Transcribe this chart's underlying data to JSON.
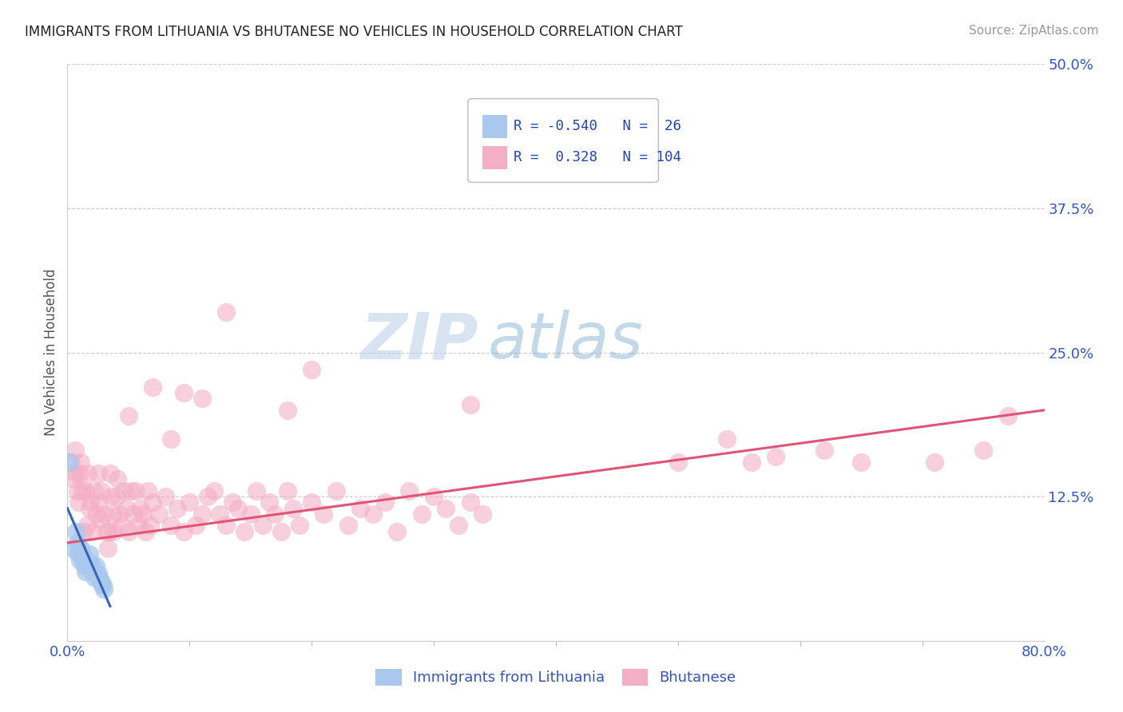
{
  "title": "IMMIGRANTS FROM LITHUANIA VS BHUTANESE NO VEHICLES IN HOUSEHOLD CORRELATION CHART",
  "source": "Source: ZipAtlas.com",
  "xlabel_blue": "Immigrants from Lithuania",
  "xlabel_pink": "Bhutanese",
  "ylabel": "No Vehicles in Household",
  "xlim": [
    0.0,
    0.8
  ],
  "ylim": [
    0.0,
    0.5
  ],
  "xtick_labels": [
    "0.0%",
    "80.0%"
  ],
  "ytick_labels": [
    "",
    "12.5%",
    "25.0%",
    "37.5%",
    "50.0%"
  ],
  "R_blue": -0.54,
  "N_blue": 26,
  "R_pink": 0.328,
  "N_pink": 104,
  "color_blue": "#aac8ee",
  "color_pink": "#f4afc5",
  "line_color_blue": "#3366bb",
  "line_color_pink": "#e05575",
  "watermark_zip": "ZIP",
  "watermark_atlas": "atlas",
  "blue_x": [
    0.002,
    0.005,
    0.007,
    0.008,
    0.009,
    0.01,
    0.011,
    0.012,
    0.013,
    0.014,
    0.015,
    0.016,
    0.017,
    0.018,
    0.019,
    0.02,
    0.021,
    0.022,
    0.023,
    0.024,
    0.025,
    0.026,
    0.027,
    0.028,
    0.029,
    0.03
  ],
  "blue_y": [
    0.155,
    0.08,
    0.095,
    0.085,
    0.075,
    0.07,
    0.08,
    0.075,
    0.07,
    0.065,
    0.06,
    0.07,
    0.065,
    0.075,
    0.068,
    0.065,
    0.06,
    0.055,
    0.065,
    0.058,
    0.058,
    0.055,
    0.052,
    0.05,
    0.048,
    0.045
  ],
  "pink_x": [
    0.003,
    0.005,
    0.006,
    0.007,
    0.008,
    0.009,
    0.01,
    0.011,
    0.012,
    0.013,
    0.015,
    0.016,
    0.017,
    0.018,
    0.019,
    0.02,
    0.022,
    0.023,
    0.025,
    0.026,
    0.027,
    0.028,
    0.03,
    0.032,
    0.033,
    0.034,
    0.035,
    0.036,
    0.037,
    0.038,
    0.04,
    0.041,
    0.042,
    0.044,
    0.046,
    0.048,
    0.05,
    0.052,
    0.054,
    0.056,
    0.058,
    0.06,
    0.062,
    0.064,
    0.066,
    0.068,
    0.07,
    0.075,
    0.08,
    0.085,
    0.09,
    0.095,
    0.1,
    0.105,
    0.11,
    0.115,
    0.12,
    0.125,
    0.13,
    0.135,
    0.14,
    0.145,
    0.15,
    0.155,
    0.16,
    0.165,
    0.17,
    0.175,
    0.18,
    0.185,
    0.19,
    0.2,
    0.21,
    0.22,
    0.23,
    0.24,
    0.25,
    0.26,
    0.27,
    0.28,
    0.29,
    0.3,
    0.31,
    0.32,
    0.33,
    0.34,
    0.05,
    0.11,
    0.2,
    0.33,
    0.5,
    0.56,
    0.58,
    0.62,
    0.65,
    0.71,
    0.13,
    0.085,
    0.18,
    0.54,
    0.07,
    0.095,
    0.75,
    0.77
  ],
  "pink_y": [
    0.155,
    0.14,
    0.165,
    0.145,
    0.13,
    0.12,
    0.145,
    0.155,
    0.13,
    0.095,
    0.13,
    0.1,
    0.145,
    0.115,
    0.12,
    0.095,
    0.13,
    0.11,
    0.145,
    0.12,
    0.105,
    0.13,
    0.11,
    0.095,
    0.08,
    0.095,
    0.145,
    0.125,
    0.11,
    0.095,
    0.125,
    0.14,
    0.11,
    0.1,
    0.13,
    0.115,
    0.095,
    0.13,
    0.11,
    0.13,
    0.1,
    0.115,
    0.11,
    0.095,
    0.13,
    0.1,
    0.12,
    0.11,
    0.125,
    0.1,
    0.115,
    0.095,
    0.12,
    0.1,
    0.11,
    0.125,
    0.13,
    0.11,
    0.1,
    0.12,
    0.115,
    0.095,
    0.11,
    0.13,
    0.1,
    0.12,
    0.11,
    0.095,
    0.13,
    0.115,
    0.1,
    0.12,
    0.11,
    0.13,
    0.1,
    0.115,
    0.11,
    0.12,
    0.095,
    0.13,
    0.11,
    0.125,
    0.115,
    0.1,
    0.12,
    0.11,
    0.195,
    0.21,
    0.235,
    0.205,
    0.155,
    0.155,
    0.16,
    0.165,
    0.155,
    0.155,
    0.285,
    0.175,
    0.2,
    0.175,
    0.22,
    0.215,
    0.165,
    0.195
  ],
  "pink_line_x0": 0.0,
  "pink_line_y0": 0.085,
  "pink_line_x1": 0.8,
  "pink_line_y1": 0.2,
  "blue_line_x0": 0.0,
  "blue_line_y0": 0.115,
  "blue_line_x1": 0.035,
  "blue_line_y1": 0.03
}
